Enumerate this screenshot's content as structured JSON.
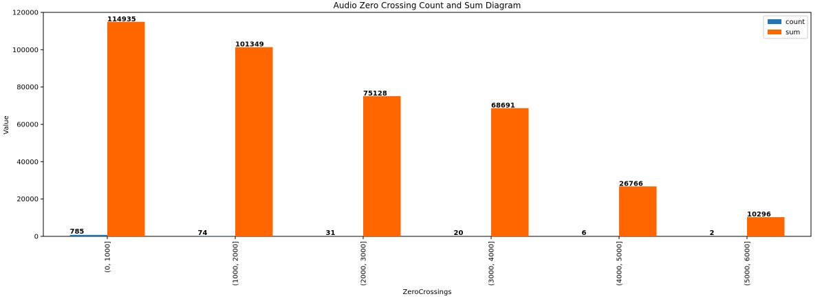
{
  "chart_data": {
    "type": "bar",
    "title": "Audio Zero Crossing Count and Sum Diagram",
    "xlabel": "ZeroCrossings",
    "ylabel": "Value",
    "categories": [
      "(0, 1000]",
      "(1000, 2000]",
      "(2000, 3000]",
      "(3000, 4000]",
      "(4000, 5000]",
      "(5000, 6000]"
    ],
    "series": [
      {
        "name": "count",
        "color": "#1f77b4",
        "values": [
          785,
          74,
          31,
          20,
          6,
          2
        ]
      },
      {
        "name": "sum",
        "color": "#ff6600",
        "values": [
          114935,
          101349,
          75128,
          68691,
          26766,
          10296
        ]
      }
    ],
    "ylim": [
      0,
      120000
    ],
    "yticks": [
      0,
      20000,
      40000,
      60000,
      80000,
      100000,
      120000
    ],
    "grid": false,
    "legend": "top-right"
  }
}
